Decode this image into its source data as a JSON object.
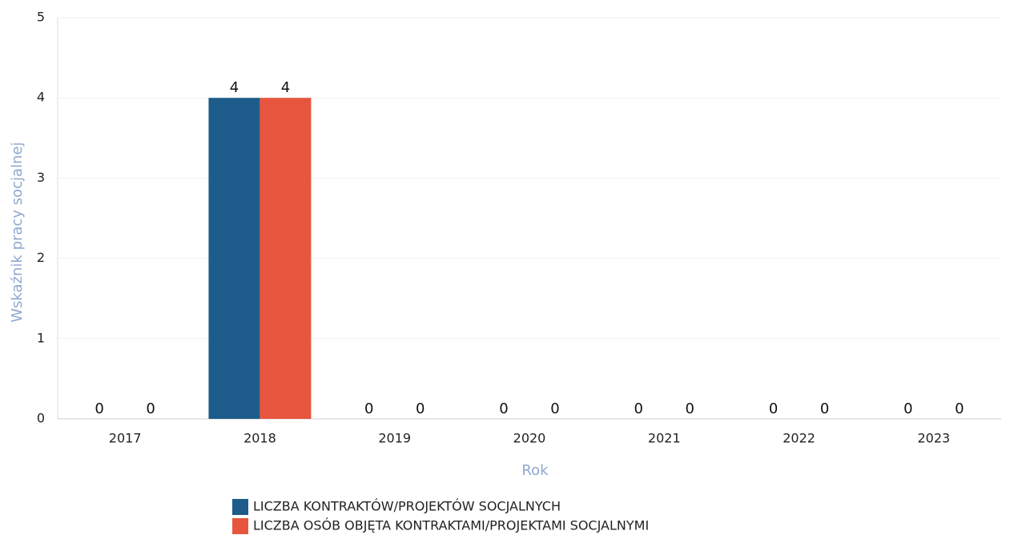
{
  "chart_data": {
    "type": "bar",
    "categories": [
      "2017",
      "2018",
      "2019",
      "2020",
      "2021",
      "2022",
      "2023"
    ],
    "series": [
      {
        "name": "LICZBA KONTRAKTÓW/PROJEKTÓW SOCJALNYCH",
        "color": "#1d5c8a",
        "values": [
          0,
          4,
          0,
          0,
          0,
          0,
          0
        ]
      },
      {
        "name": "LICZBA OSÓB OBJĘTA KONTRAKTAMI/PROJEKTAMI SOCJALNYMI",
        "color": "#e8553e",
        "values": [
          0,
          4,
          0,
          0,
          0,
          0,
          0
        ]
      }
    ],
    "xlabel": "Rok",
    "ylabel": "Wskaźnik pracy socjalnej",
    "ylim": [
      0,
      5
    ],
    "yticks": [
      0,
      1,
      2,
      3,
      4,
      5
    ],
    "grid": true
  }
}
